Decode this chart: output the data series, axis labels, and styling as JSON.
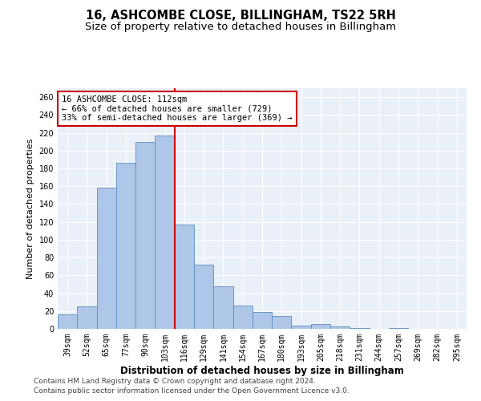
{
  "title": "16, ASHCOMBE CLOSE, BILLINGHAM, TS22 5RH",
  "subtitle": "Size of property relative to detached houses in Billingham",
  "xlabel": "Distribution of detached houses by size in Billingham",
  "ylabel": "Number of detached properties",
  "categories": [
    "39sqm",
    "52sqm",
    "65sqm",
    "77sqm",
    "90sqm",
    "103sqm",
    "116sqm",
    "129sqm",
    "141sqm",
    "154sqm",
    "167sqm",
    "180sqm",
    "193sqm",
    "205sqm",
    "218sqm",
    "231sqm",
    "244sqm",
    "257sqm",
    "269sqm",
    "282sqm",
    "295sqm"
  ],
  "values": [
    16,
    25,
    158,
    186,
    210,
    217,
    117,
    72,
    48,
    26,
    19,
    14,
    4,
    5,
    3,
    1,
    0,
    1,
    0,
    0,
    0
  ],
  "bar_color": "#aec6e8",
  "bar_edge_color": "#5b8fbe",
  "vline_x": 5.5,
  "vline_color": "#cc0000",
  "annotation_line1": "16 ASHCOMBE CLOSE: 112sqm",
  "annotation_line2": "← 66% of detached houses are smaller (729)",
  "annotation_line3": "33% of semi-detached houses are larger (369) →",
  "annotation_box_color": "#ffffff",
  "annotation_box_edge_color": "#cc0000",
  "ylim": [
    0,
    270
  ],
  "yticks": [
    0,
    20,
    40,
    60,
    80,
    100,
    120,
    140,
    160,
    180,
    200,
    220,
    240,
    260
  ],
  "bg_color": "#eaf0f8",
  "footer1": "Contains HM Land Registry data © Crown copyright and database right 2024.",
  "footer2": "Contains public sector information licensed under the Open Government Licence v3.0.",
  "title_fontsize": 10.5,
  "subtitle_fontsize": 9.5,
  "xlabel_fontsize": 8.5,
  "ylabel_fontsize": 8,
  "tick_fontsize": 7,
  "annot_fontsize": 7.5,
  "footer_fontsize": 6.5
}
